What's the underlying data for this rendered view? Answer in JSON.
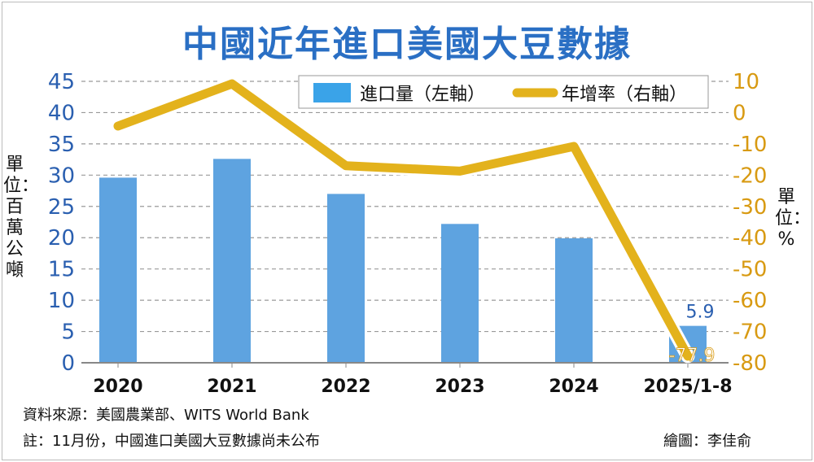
{
  "chart_data": {
    "type": "bar+line",
    "title": "中國近年進口美國大豆數據",
    "categories": [
      "2020",
      "2021",
      "2022",
      "2023",
      "2024",
      "2025/1-8"
    ],
    "series": [
      {
        "name": "進口量（左軸）",
        "type": "bar",
        "axis": "left",
        "values": [
          29.6,
          32.6,
          27.0,
          22.2,
          19.9,
          5.9
        ],
        "color": "#5ea3e0"
      },
      {
        "name": "年增率（右軸）",
        "type": "line",
        "axis": "right",
        "values": [
          -4.3,
          9.2,
          -17.0,
          -18.7,
          -10.8,
          -77.9
        ],
        "color": "#e3b21c"
      }
    ],
    "data_labels": {
      "bar_last": "5.9",
      "line_last": "-77.9"
    },
    "ylabel_left": "單位：百萬公噸",
    "ylabel_right": "單位：%",
    "ylim_left": [
      0,
      45
    ],
    "yticks_left": [
      0,
      5,
      10,
      15,
      20,
      25,
      30,
      35,
      40,
      45
    ],
    "ylim_right": [
      -80,
      10
    ],
    "yticks_right": [
      -80,
      -70,
      -60,
      -50,
      -40,
      -30,
      -20,
      -10,
      0,
      10
    ],
    "grid": true,
    "legend": "top-right"
  },
  "footer": {
    "source": "資料來源：美國農業部、WITS World Bank",
    "note": "註：11月份，中國進口美國大豆數據尚未公布",
    "credit": "繪圖：李佳俞"
  }
}
